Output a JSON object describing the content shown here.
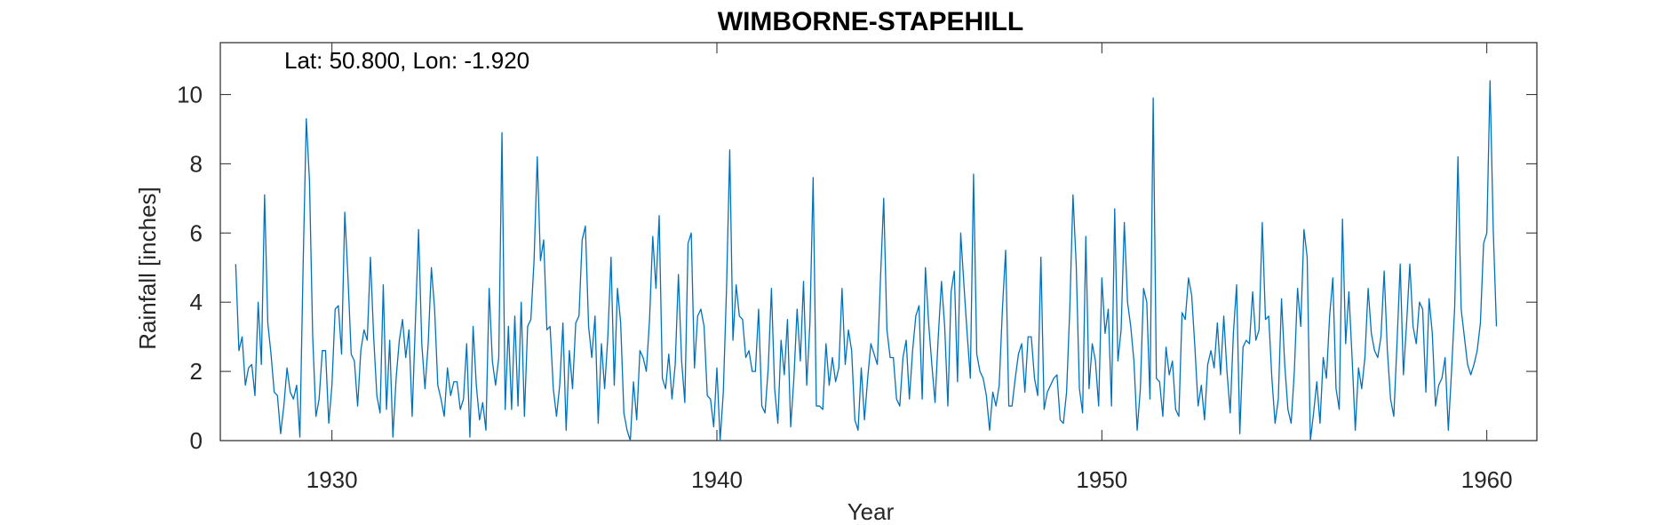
{
  "chart_data": {
    "type": "line",
    "title": "WIMBORNE-STAPEHILL",
    "xlabel": "Year",
    "ylabel": "Rainfall [inches]",
    "annotation": "Lat: 50.800, Lon: -1.920",
    "xlim": [
      1927.1,
      1961.3
    ],
    "ylim": [
      0,
      11.5
    ],
    "x_ticks": [
      1930,
      1940,
      1950,
      1960
    ],
    "y_ticks": [
      0,
      2,
      4,
      6,
      8,
      10
    ],
    "grid": false,
    "line_color": "#0072BD",
    "series": [
      {
        "x_start": 1927.5,
        "x_step": 0.0833333,
        "values": [
          5.1,
          2.6,
          3.0,
          1.6,
          2.1,
          2.2,
          1.3,
          4.0,
          2.2,
          7.1,
          3.4,
          2.5,
          1.4,
          1.3,
          0.2,
          1.0,
          2.1,
          1.4,
          1.2,
          1.6,
          0.1,
          5.0,
          9.3,
          7.5,
          3.0,
          0.7,
          1.2,
          2.6,
          2.6,
          0.5,
          1.6,
          3.8,
          3.9,
          2.5,
          6.6,
          4.7,
          2.5,
          2.3,
          1.0,
          2.6,
          3.2,
          2.9,
          5.3,
          3.0,
          1.3,
          0.8,
          4.5,
          0.9,
          2.9,
          0.1,
          1.8,
          2.9,
          3.5,
          2.4,
          3.2,
          0.7,
          3.4,
          6.1,
          2.8,
          1.5,
          2.8,
          5.0,
          3.8,
          1.6,
          1.2,
          0.7,
          2.1,
          1.3,
          1.7,
          1.7,
          0.9,
          1.2,
          2.8,
          0.1,
          3.3,
          1.6,
          0.6,
          1.1,
          0.3,
          4.4,
          2.3,
          1.6,
          2.4,
          8.9,
          0.9,
          3.3,
          0.9,
          3.6,
          1.0,
          4.0,
          0.7,
          3.3,
          3.5,
          5.2,
          8.2,
          5.2,
          5.8,
          3.2,
          3.3,
          1.5,
          0.7,
          1.6,
          3.4,
          0.3,
          2.6,
          1.5,
          3.4,
          3.6,
          5.8,
          6.2,
          3.3,
          2.4,
          3.6,
          0.5,
          2.8,
          1.5,
          3.0,
          5.3,
          1.6,
          4.4,
          3.4,
          0.8,
          0.3,
          0.0,
          1.7,
          0.6,
          2.6,
          2.4,
          2.0,
          3.5,
          5.9,
          4.4,
          6.5,
          1.8,
          1.5,
          2.5,
          1.2,
          2.2,
          4.8,
          2.3,
          1.1,
          5.7,
          6.0,
          2.1,
          3.6,
          3.8,
          3.3,
          1.3,
          1.2,
          0.4,
          2.1,
          0.0,
          1.4,
          4.4,
          8.4,
          2.9,
          4.5,
          3.6,
          3.5,
          2.4,
          2.6,
          2.0,
          2.0,
          3.8,
          1.0,
          0.8,
          2.1,
          4.4,
          1.5,
          0.5,
          2.9,
          1.9,
          3.5,
          0.4,
          1.8,
          3.8,
          2.3,
          4.6,
          1.6,
          3.4,
          7.6,
          1.0,
          1.0,
          0.9,
          2.8,
          1.6,
          2.4,
          1.7,
          2.1,
          4.4,
          2.2,
          3.2,
          2.6,
          0.6,
          0.3,
          2.1,
          0.6,
          1.8,
          2.8,
          2.5,
          2.2,
          4.7,
          7.0,
          3.2,
          2.4,
          2.4,
          1.2,
          1.0,
          2.4,
          2.9,
          1.2,
          2.6,
          3.6,
          3.9,
          1.2,
          5.0,
          3.4,
          2.2,
          1.1,
          3.0,
          4.6,
          3.3,
          1.0,
          4.3,
          4.9,
          1.7,
          6.0,
          4.5,
          3.1,
          1.8,
          7.7,
          2.5,
          2.0,
          1.8,
          1.3,
          0.3,
          1.4,
          1.0,
          1.6,
          3.8,
          5.5,
          1.0,
          1.0,
          1.8,
          2.5,
          2.8,
          1.4,
          3.0,
          3.0,
          1.8,
          1.3,
          5.3,
          0.9,
          1.4,
          1.6,
          1.8,
          1.9,
          0.6,
          0.5,
          1.4,
          3.8,
          7.1,
          5.1,
          1.5,
          0.8,
          5.9,
          1.5,
          2.8,
          2.3,
          1.0,
          4.7,
          3.1,
          3.8,
          1.0,
          6.7,
          2.3,
          3.2,
          6.3,
          4.0,
          3.3,
          2.3,
          0.3,
          1.5,
          4.4,
          4.0,
          1.2,
          9.9,
          1.8,
          1.7,
          0.7,
          2.7,
          1.9,
          2.3,
          0.9,
          0.7,
          3.7,
          3.5,
          4.7,
          4.2,
          2.7,
          1.0,
          1.6,
          0.6,
          2.2,
          2.6,
          2.1,
          3.4,
          1.9,
          3.6,
          2.0,
          0.8,
          3.1,
          4.5,
          0.2,
          2.7,
          2.9,
          2.8,
          4.3,
          2.9,
          3.2,
          6.3,
          3.5,
          3.6,
          1.8,
          0.5,
          1.2,
          4.1,
          2.2,
          0.9,
          0.5,
          2.0,
          4.4,
          3.3,
          6.1,
          5.3,
          0.0,
          0.8,
          1.7,
          0.5,
          2.4,
          1.8,
          3.6,
          4.7,
          1.5,
          0.9,
          6.4,
          2.8,
          4.3,
          2.4,
          0.3,
          2.1,
          1.5,
          2.4,
          4.4,
          3.1,
          2.6,
          2.4,
          3.0,
          4.9,
          2.6,
          1.2,
          0.7,
          2.8,
          5.1,
          1.9,
          3.4,
          5.1,
          3.3,
          2.8,
          4.0,
          3.8,
          1.4,
          4.1,
          3.1,
          1.0,
          1.6,
          1.8,
          2.4,
          0.3,
          2.0,
          3.9,
          8.2,
          3.8,
          3.0,
          2.2,
          1.9,
          2.2,
          2.6,
          3.4,
          5.7,
          6.0,
          10.4,
          6.1,
          3.3
        ]
      }
    ]
  }
}
